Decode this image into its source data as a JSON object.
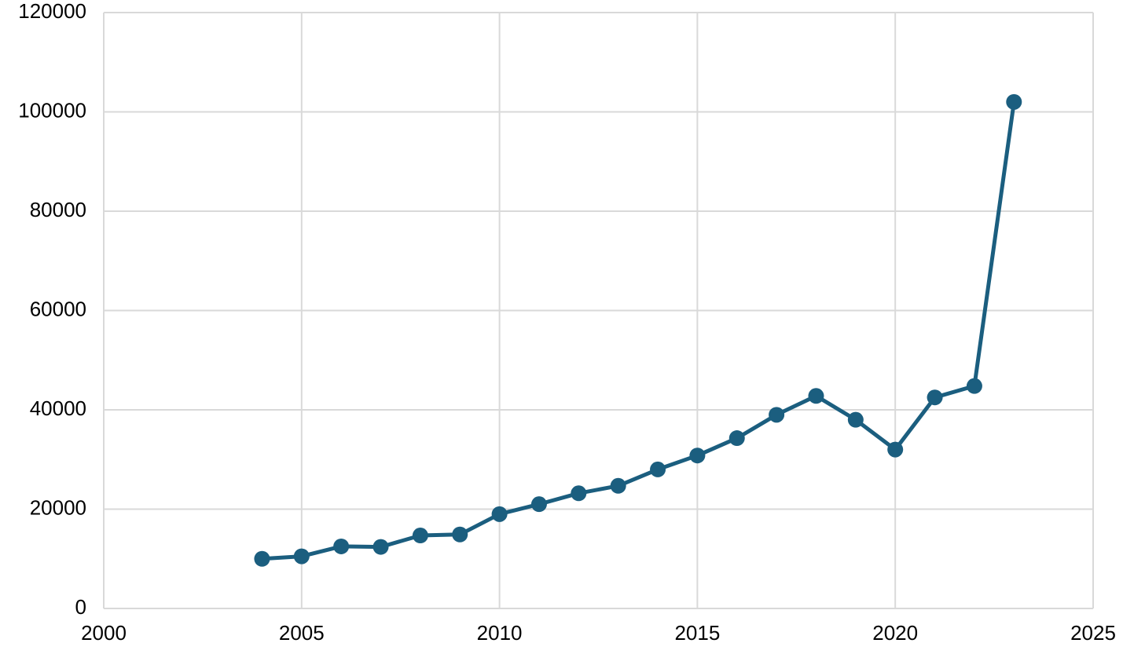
{
  "chart_data": {
    "type": "line",
    "title": "",
    "xlabel": "",
    "ylabel": "",
    "xlim": [
      2000,
      2025
    ],
    "ylim": [
      0,
      120000
    ],
    "x_ticks": [
      2000,
      2005,
      2010,
      2015,
      2020,
      2025
    ],
    "y_ticks": [
      0,
      20000,
      40000,
      60000,
      80000,
      100000,
      120000
    ],
    "grid": true,
    "legend": "none",
    "series": [
      {
        "color": "#1b5e7f",
        "marker": "circle",
        "x": [
          2004,
          2005,
          2006,
          2007,
          2008,
          2009,
          2010,
          2011,
          2012,
          2013,
          2014,
          2015,
          2016,
          2017,
          2018,
          2019,
          2020,
          2021,
          2022,
          2023
        ],
        "y": [
          10000,
          10500,
          12500,
          12400,
          14700,
          14900,
          19000,
          21000,
          23200,
          24700,
          28000,
          30800,
          34300,
          39000,
          42800,
          38000,
          32000,
          42500,
          44800,
          102000
        ]
      }
    ]
  }
}
